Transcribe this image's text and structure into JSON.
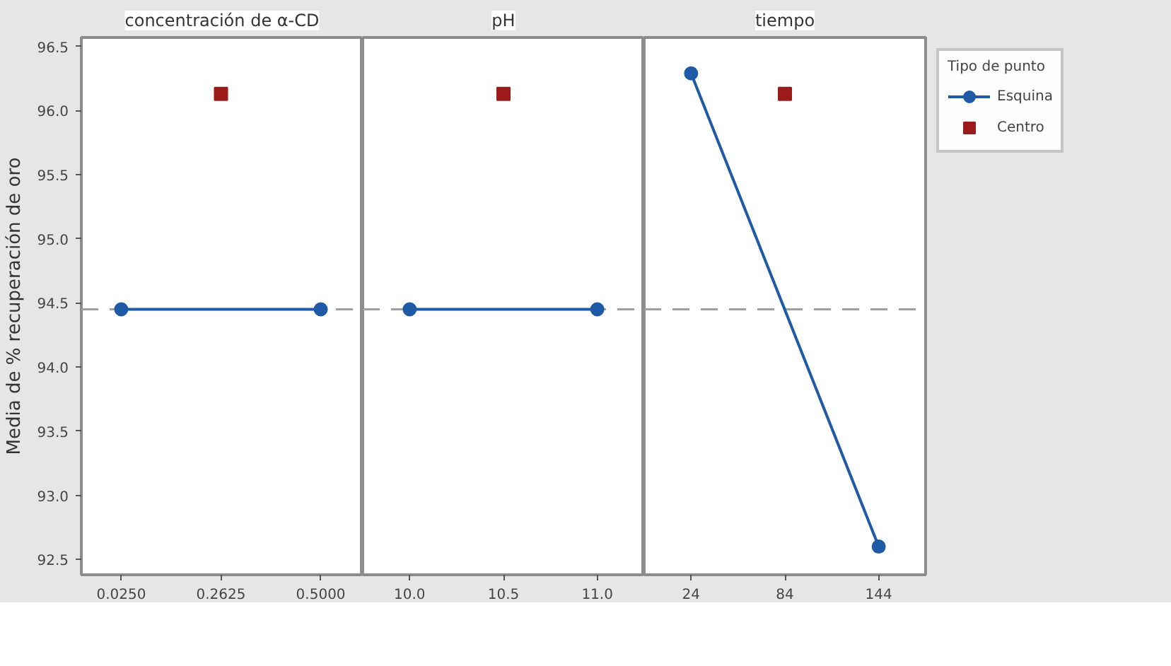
{
  "chart_data": [
    {
      "type": "line",
      "title": "concentración de α-CD",
      "ylabel": "Media de % recuperación de oro",
      "xlim": [
        -0.07,
        0.6
      ],
      "xticks": [
        {
          "value": 0.025,
          "label": "0.0250"
        },
        {
          "value": 0.2625,
          "label": "0.2625"
        },
        {
          "value": 0.5,
          "label": "0.5000"
        }
      ],
      "series": [
        {
          "type": "line",
          "marker": "circle",
          "color": "#1f5aa6",
          "x": [
            0.025,
            0.5
          ],
          "values": [
            94.45,
            94.45
          ]
        },
        {
          "type": "scatter",
          "marker": "square",
          "color": "#9b1b1b",
          "x": [
            0.2625
          ],
          "values": [
            96.13
          ]
        }
      ],
      "ylim": [
        92.38,
        96.57
      ],
      "yticks": [
        92.5,
        {
          "value": 93,
          "label": "93.0"
        },
        93.5,
        {
          "value": 94,
          "label": "94.0"
        },
        94.5,
        {
          "value": 95,
          "label": "95.0"
        },
        95.5,
        {
          "value": 96,
          "label": "96.0"
        },
        96.5
      ],
      "ref_lines": [
        {
          "axis": "y",
          "value": 94.45,
          "color": "#a0a0a0",
          "line_style": "dashed"
        }
      ],
      "grid": false
    },
    {
      "type": "line",
      "title": "pH",
      "xlim": [
        9.75,
        11.25
      ],
      "xticks": [
        {
          "value": 10,
          "label": "10.0"
        },
        10.5,
        {
          "value": 11,
          "label": "11.0"
        }
      ],
      "series": [
        {
          "type": "line",
          "marker": "circle",
          "color": "#1f5aa6",
          "x": [
            10,
            11
          ],
          "values": [
            94.45,
            94.45
          ]
        },
        {
          "type": "scatter",
          "marker": "square",
          "color": "#9b1b1b",
          "x": [
            10.5
          ],
          "values": [
            96.13
          ]
        }
      ],
      "ylim": [
        92.38,
        96.57
      ],
      "tick_labels": "x",
      "ref_lines": [
        {
          "axis": "y",
          "value": 94.45,
          "color": "#a0a0a0",
          "line_style": "dashed"
        }
      ],
      "grid": false
    },
    {
      "type": "line",
      "title": "tiempo",
      "legend_title": "Tipo de punto",
      "xlim": [
        -6,
        174
      ],
      "xticks": [
        24,
        84,
        144
      ],
      "series": [
        {
          "name": "Esquina",
          "type": "line",
          "marker": "circle",
          "color": "#1f5aa6",
          "x": [
            24,
            144
          ],
          "values": [
            96.29,
            92.6
          ]
        },
        {
          "name": "Centro",
          "type": "scatter",
          "marker": "square",
          "color": "#9b1b1b",
          "x": [
            84
          ],
          "values": [
            96.13
          ]
        }
      ],
      "ylim": [
        92.38,
        96.57
      ],
      "tick_labels": "x",
      "ref_lines": [
        {
          "axis": "y",
          "value": 94.45,
          "color": "#a0a0a0",
          "line_style": "dashed"
        }
      ],
      "legend": "top right",
      "grid": false
    }
  ]
}
